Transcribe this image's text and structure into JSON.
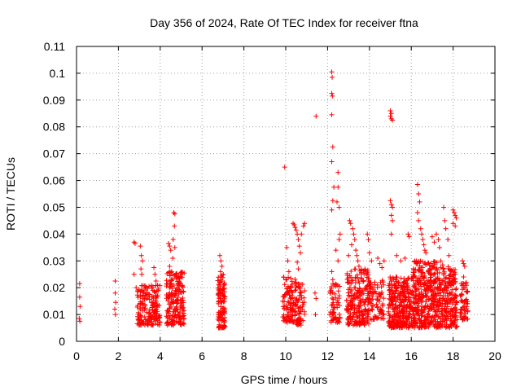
{
  "chart_data": {
    "type": "scatter",
    "title": "Day 356 of 2024, Rate Of TEC Index for receiver ftna",
    "xlabel": "GPS time / hours",
    "ylabel": "ROTI / TECUs",
    "xlim": [
      0,
      20
    ],
    "ylim": [
      0,
      0.11
    ],
    "xticks": [
      0,
      2,
      4,
      6,
      8,
      10,
      12,
      14,
      16,
      18,
      20
    ],
    "xtick_labels": [
      "0",
      "2",
      "4",
      "6",
      "8",
      "10",
      "12",
      "14",
      "16",
      "18",
      "20"
    ],
    "yticks": [
      0,
      0.01,
      0.02,
      0.03,
      0.04,
      0.05,
      0.06,
      0.07,
      0.08,
      0.09,
      0.1,
      0.11
    ],
    "ytick_labels": [
      "0",
      "0.01",
      "0.02",
      "0.03",
      "0.04",
      "0.05",
      "0.06",
      "0.07",
      "0.08",
      "0.09",
      "0.1",
      "0.11"
    ],
    "grid": true,
    "marker": "+",
    "color": "#ff0000",
    "series": [
      {
        "name": "ROTI",
        "points": [
          [
            0.15,
            0.0215
          ],
          [
            0.15,
            0.0165
          ],
          [
            0.17,
            0.013
          ],
          [
            0.13,
            0.0085
          ],
          [
            0.16,
            0.0075
          ],
          [
            1.85,
            0.0225
          ],
          [
            1.85,
            0.018
          ],
          [
            1.87,
            0.0145
          ],
          [
            1.83,
            0.012
          ],
          [
            1.86,
            0.01
          ],
          [
            2.75,
            0.037
          ],
          [
            2.8,
            0.0365
          ],
          [
            2.75,
            0.025
          ],
          [
            2.85,
            0.02
          ],
          [
            3.05,
            0.0355
          ],
          [
            3.1,
            0.032
          ],
          [
            3.15,
            0.03
          ],
          [
            3.08,
            0.027
          ],
          [
            3.12,
            0.025
          ],
          [
            3.7,
            0.0275
          ],
          [
            3.75,
            0.025
          ],
          [
            3.8,
            0.0225
          ],
          [
            4.4,
            0.0365
          ],
          [
            4.45,
            0.0355
          ],
          [
            4.5,
            0.034
          ],
          [
            4.6,
            0.031
          ],
          [
            4.45,
            0.028
          ],
          [
            4.55,
            0.026
          ],
          [
            4.65,
            0.048
          ],
          [
            4.7,
            0.0475
          ],
          [
            4.68,
            0.043
          ],
          [
            4.62,
            0.038
          ],
          [
            4.7,
            0.035
          ],
          [
            6.85,
            0.032
          ],
          [
            6.9,
            0.03
          ],
          [
            6.95,
            0.028
          ],
          [
            6.88,
            0.026
          ],
          [
            9.95,
            0.065
          ],
          [
            10.05,
            0.035
          ],
          [
            10.1,
            0.03
          ],
          [
            10.15,
            0.026
          ],
          [
            10.35,
            0.044
          ],
          [
            10.4,
            0.0435
          ],
          [
            10.45,
            0.0425
          ],
          [
            10.5,
            0.0415
          ],
          [
            10.55,
            0.04
          ],
          [
            10.6,
            0.038
          ],
          [
            10.65,
            0.0355
          ],
          [
            10.7,
            0.033
          ],
          [
            10.55,
            0.0295
          ],
          [
            10.6,
            0.027
          ],
          [
            10.75,
            0.04
          ],
          [
            10.85,
            0.043
          ],
          [
            10.9,
            0.044
          ],
          [
            11.45,
            0.084
          ],
          [
            11.4,
            0.018
          ],
          [
            11.45,
            0.016
          ],
          [
            11.42,
            0.01
          ],
          [
            12.2,
            0.1005
          ],
          [
            12.22,
            0.0985
          ],
          [
            12.2,
            0.0925
          ],
          [
            12.23,
            0.0915
          ],
          [
            12.2,
            0.0845
          ],
          [
            12.25,
            0.0725
          ],
          [
            12.2,
            0.067
          ],
          [
            12.5,
            0.063
          ],
          [
            12.3,
            0.0575
          ],
          [
            12.5,
            0.0575
          ],
          [
            12.25,
            0.0525
          ],
          [
            12.2,
            0.049
          ],
          [
            12.55,
            0.05
          ],
          [
            12.45,
            0.052
          ],
          [
            12.6,
            0.04
          ],
          [
            12.55,
            0.038
          ],
          [
            12.4,
            0.034
          ],
          [
            12.5,
            0.03
          ],
          [
            12.2,
            0.026
          ],
          [
            12.25,
            0.023
          ],
          [
            13.05,
            0.045
          ],
          [
            13.1,
            0.044
          ],
          [
            13.2,
            0.042
          ],
          [
            13.25,
            0.04
          ],
          [
            13.3,
            0.038
          ],
          [
            13.15,
            0.036
          ],
          [
            13.0,
            0.032
          ],
          [
            13.35,
            0.034
          ],
          [
            13.4,
            0.032
          ],
          [
            13.45,
            0.03
          ],
          [
            13.5,
            0.028
          ],
          [
            13.9,
            0.04
          ],
          [
            13.95,
            0.038
          ],
          [
            14.0,
            0.033
          ],
          [
            14.1,
            0.03
          ],
          [
            14.4,
            0.031
          ],
          [
            14.5,
            0.029
          ],
          [
            14.6,
            0.0275
          ],
          [
            14.7,
            0.03
          ],
          [
            15.0,
            0.086
          ],
          [
            15.05,
            0.085
          ],
          [
            15.0,
            0.084
          ],
          [
            15.05,
            0.083
          ],
          [
            15.1,
            0.0825
          ],
          [
            15.0,
            0.0525
          ],
          [
            15.05,
            0.051
          ],
          [
            15.1,
            0.05
          ],
          [
            15.05,
            0.047
          ],
          [
            15.1,
            0.045
          ],
          [
            15.05,
            0.04
          ],
          [
            15.3,
            0.032
          ],
          [
            15.5,
            0.03
          ],
          [
            15.7,
            0.031
          ],
          [
            15.85,
            0.04
          ],
          [
            15.9,
            0.039
          ],
          [
            16.3,
            0.0585
          ],
          [
            16.35,
            0.055
          ],
          [
            16.4,
            0.052
          ],
          [
            16.3,
            0.048
          ],
          [
            16.35,
            0.045
          ],
          [
            16.45,
            0.042
          ],
          [
            16.5,
            0.04
          ],
          [
            16.55,
            0.038
          ],
          [
            16.6,
            0.036
          ],
          [
            16.65,
            0.034
          ],
          [
            16.7,
            0.033
          ],
          [
            17.0,
            0.039
          ],
          [
            17.1,
            0.037
          ],
          [
            17.2,
            0.04
          ],
          [
            17.3,
            0.038
          ],
          [
            17.35,
            0.035
          ],
          [
            17.55,
            0.05
          ],
          [
            17.6,
            0.045
          ],
          [
            17.65,
            0.042
          ],
          [
            17.75,
            0.038
          ],
          [
            17.8,
            0.032
          ],
          [
            18.0,
            0.049
          ],
          [
            18.05,
            0.048
          ],
          [
            18.1,
            0.047
          ],
          [
            18.15,
            0.046
          ],
          [
            18.0,
            0.044
          ],
          [
            18.1,
            0.043
          ],
          [
            18.45,
            0.03
          ],
          [
            18.5,
            0.029
          ],
          [
            18.55,
            0.028
          ],
          [
            18.5,
            0.024
          ]
        ]
      }
    ],
    "dense_clusters": [
      {
        "x_range": [
          2.9,
          3.3
        ],
        "y_range": [
          0.006,
          0.021
        ],
        "count": 70
      },
      {
        "x_range": [
          3.3,
          4.0
        ],
        "y_range": [
          0.006,
          0.021
        ],
        "count": 110
      },
      {
        "x_range": [
          4.3,
          5.15
        ],
        "y_range": [
          0.006,
          0.026
        ],
        "count": 200
      },
      {
        "x_range": [
          6.75,
          7.1
        ],
        "y_range": [
          0.005,
          0.025
        ],
        "count": 110
      },
      {
        "x_range": [
          9.85,
          10.5
        ],
        "y_range": [
          0.007,
          0.024
        ],
        "count": 110
      },
      {
        "x_range": [
          10.5,
          10.9
        ],
        "y_range": [
          0.006,
          0.022
        ],
        "count": 60
      },
      {
        "x_range": [
          12.1,
          12.6
        ],
        "y_range": [
          0.007,
          0.022
        ],
        "count": 60
      },
      {
        "x_range": [
          12.9,
          14.0
        ],
        "y_range": [
          0.006,
          0.027
        ],
        "count": 230
      },
      {
        "x_range": [
          14.0,
          14.7
        ],
        "y_range": [
          0.008,
          0.024
        ],
        "count": 80
      },
      {
        "x_range": [
          14.9,
          16.0
        ],
        "y_range": [
          0.005,
          0.024
        ],
        "count": 300
      },
      {
        "x_range": [
          16.0,
          17.5
        ],
        "y_range": [
          0.005,
          0.03
        ],
        "count": 420
      },
      {
        "x_range": [
          17.5,
          18.2
        ],
        "y_range": [
          0.005,
          0.028
        ],
        "count": 170
      },
      {
        "x_range": [
          18.35,
          18.7
        ],
        "y_range": [
          0.008,
          0.022
        ],
        "count": 60
      }
    ]
  }
}
